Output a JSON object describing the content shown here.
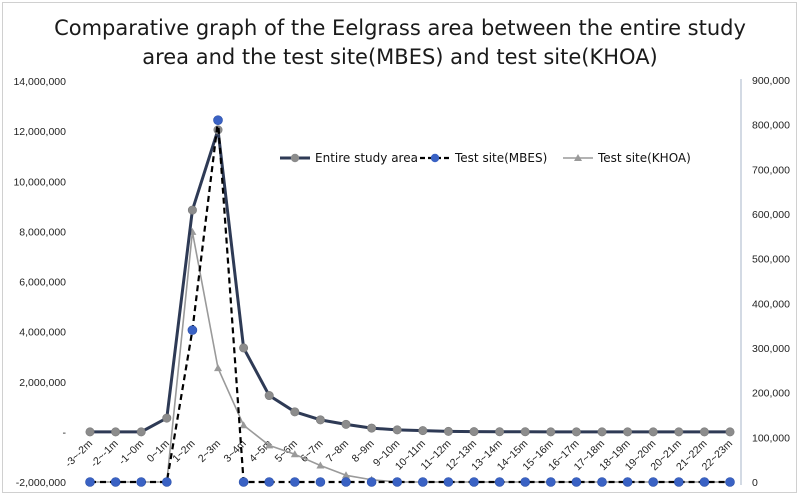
{
  "chart_data": {
    "type": "line",
    "title": [
      "Comparative graph of the Eelgrass area between the entire study",
      "area and the test site(MBES) and test site(KHOA)"
    ],
    "categories": [
      "-3~-2m",
      "-2~-1m",
      "-1~0m",
      "0~1m",
      "1~2m",
      "2~3m",
      "3~4m",
      "4~5m",
      "5~6m",
      "6~7m",
      "7~8m",
      "8~9m",
      "9~10m",
      "10~11m",
      "11~12m",
      "12~13m",
      "13~14m",
      "14~15m",
      "15~16m",
      "16~17m",
      "17~18m",
      "18~19m",
      "19~20m",
      "20~21m",
      "21~22m",
      "22~23m"
    ],
    "left_axis": {
      "ylim": [
        -2000000,
        14000000
      ],
      "ticks": [
        -2000000,
        0,
        2000000,
        4000000,
        6000000,
        8000000,
        10000000,
        12000000,
        14000000
      ],
      "tick_labels": [
        "-2,000,000",
        "-",
        "2,000,000",
        "4,000,000",
        "6,000,000",
        "8,000,000",
        "10,000,000",
        "12,000,000",
        "14,000,000"
      ]
    },
    "right_axis": {
      "ylim": [
        0,
        900000
      ],
      "ticks": [
        0,
        100000,
        200000,
        300000,
        400000,
        500000,
        600000,
        700000,
        800000,
        900000
      ],
      "tick_labels": [
        "0",
        "100,000",
        "200,000",
        "300,000",
        "400,000",
        "500,000",
        "600,000",
        "700,000",
        "800,000",
        "900,000"
      ]
    },
    "series": [
      {
        "name": "Entire study area",
        "axis": "left",
        "color": "#2e3a55",
        "style": "solid",
        "marker": "circle",
        "marker_color": "#8c8c8c",
        "values": [
          0,
          0,
          0,
          550000,
          8850000,
          12050000,
          3350000,
          1450000,
          800000,
          480000,
          300000,
          150000,
          80000,
          50000,
          20000,
          10000,
          5000,
          5000,
          0,
          0,
          0,
          0,
          0,
          0,
          0,
          0
        ]
      },
      {
        "name": "Test site(MBES)",
        "axis": "right",
        "color": "#000000",
        "style": "dashed",
        "marker": "circle",
        "marker_color": "#3a62c4",
        "values": [
          0,
          0,
          0,
          0,
          340000,
          810000,
          0,
          0,
          0,
          0,
          0,
          0,
          0,
          0,
          0,
          0,
          0,
          0,
          0,
          0,
          0,
          0,
          0,
          0,
          0,
          0
        ]
      },
      {
        "name": "Test site(KHOA)",
        "axis": "right",
        "color": "#9a9a9a",
        "style": "solid",
        "marker": "triangle",
        "marker_color": "#9a9a9a",
        "values": [
          0,
          0,
          0,
          0,
          560000,
          255000,
          127000,
          82000,
          62000,
          37000,
          15000,
          5000,
          0,
          0,
          0,
          0,
          0,
          0,
          0,
          0,
          0,
          0,
          0,
          0,
          0,
          0
        ]
      }
    ],
    "legend_position": "top-right"
  }
}
